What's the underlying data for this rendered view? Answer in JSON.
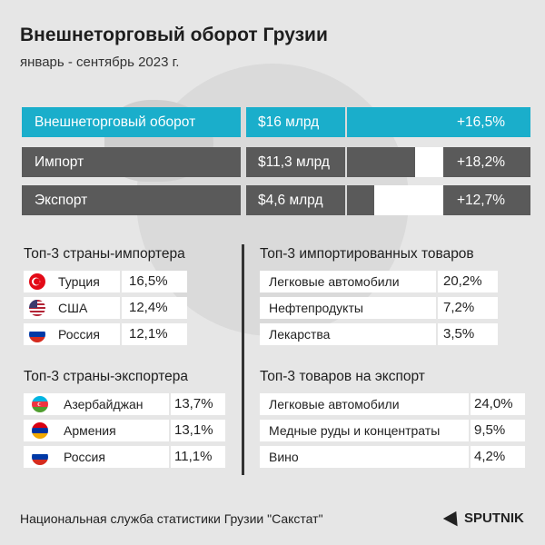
{
  "header": {
    "title": "Внешнеторговый оборот Грузии",
    "subtitle": "январь - сентябрь 2023 г."
  },
  "colors": {
    "accent": "#1aaecb",
    "dark_gray": "#5a5a5a",
    "light_gray": "#d2d2d2",
    "white": "#ffffff"
  },
  "chart_data": [
    {
      "type": "bar",
      "title": "Внешнеторговый оборот Грузии",
      "categories": [
        "Внешнеторговый оборот",
        "Импорт",
        "Экспорт"
      ],
      "values": [
        16,
        11.3,
        4.6
      ],
      "value_labels": [
        "$16 млрд",
        "$11,3 млрд",
        "$4,6 млрд"
      ],
      "growth_labels": [
        "+16,5%",
        "+18,2%",
        "+12,7%"
      ],
      "unit": "млрд $",
      "xlim": [
        0,
        16
      ]
    },
    {
      "type": "table",
      "title": "Топ-3 страны-импортера",
      "rows": [
        {
          "country": "Турция",
          "flag": "turkey-flag-icon",
          "value": 16.5,
          "label": "16,5%"
        },
        {
          "country": "США",
          "flag": "usa-flag-icon",
          "value": 12.4,
          "label": "12,4%"
        },
        {
          "country": "Россия",
          "flag": "russia-flag-icon",
          "value": 12.1,
          "label": "12,1%"
        }
      ]
    },
    {
      "type": "table",
      "title": "Топ-3 импортированных товаров",
      "rows": [
        {
          "item": "Легковые автомобили",
          "value": 20.2,
          "label": "20,2%"
        },
        {
          "item": "Нефтепродукты",
          "value": 7.2,
          "label": "7,2%"
        },
        {
          "item": "Лекарства",
          "value": 3.5,
          "label": "3,5%"
        }
      ]
    },
    {
      "type": "table",
      "title": "Топ-3 страны-экспортера",
      "rows": [
        {
          "country": "Азербайджан",
          "flag": "azerbaijan-flag-icon",
          "value": 13.7,
          "label": "13,7%"
        },
        {
          "country": "Армения",
          "flag": "armenia-flag-icon",
          "value": 13.1,
          "label": "13,1%"
        },
        {
          "country": "Россия",
          "flag": "russia-flag-icon",
          "value": 11.1,
          "label": "11,1%"
        }
      ]
    },
    {
      "type": "table",
      "title": "Топ-3 товаров на экспорт",
      "rows": [
        {
          "item": "Легковые автомобили",
          "value": 24.0,
          "label": "24,0%"
        },
        {
          "item": "Медные руды и концентраты",
          "value": 9.5,
          "label": "9,5%"
        },
        {
          "item": "Вино",
          "value": 4.2,
          "label": "4,2%"
        }
      ]
    }
  ],
  "footer": {
    "source": "Национальная служба статистики Грузии \"Сакстат\"",
    "logo": "SPUTNIK",
    "logo_icon": "sputnik-arrow-icon"
  }
}
